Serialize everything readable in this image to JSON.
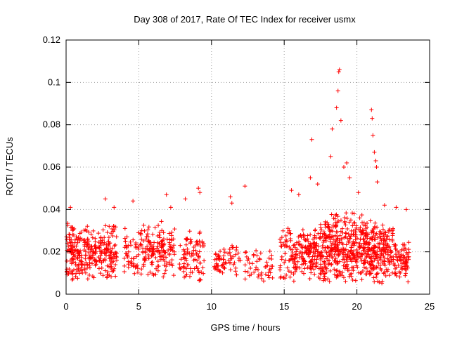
{
  "chart_data": {
    "type": "scatter",
    "title": "Day 308 of 2017, Rate Of TEC Index for receiver usmx",
    "xlabel": "GPS time / hours",
    "ylabel": "ROTI / TECUs",
    "xlim": [
      0,
      25
    ],
    "ylim": [
      0,
      0.12
    ],
    "xticks": [
      0,
      5,
      10,
      15,
      20,
      25
    ],
    "yticks": [
      0,
      0.02,
      0.04,
      0.06,
      0.08,
      0.1,
      0.12
    ],
    "ytick_labels": [
      "0",
      "0.02",
      "0.04",
      "0.06",
      "0.08",
      "0.1",
      "0.12"
    ],
    "grid": true,
    "legend": "none",
    "marker": "+",
    "color": "#ff0000",
    "density_bands": [
      {
        "x_range": [
          0.0,
          3.5
        ],
        "y_min": 0.005,
        "y_max": 0.035,
        "count": 320
      },
      {
        "x_range": [
          4.0,
          5.0
        ],
        "y_min": 0.006,
        "y_max": 0.032,
        "count": 50
      },
      {
        "x_range": [
          5.1,
          7.5
        ],
        "y_min": 0.006,
        "y_max": 0.035,
        "count": 160
      },
      {
        "x_range": [
          7.8,
          9.5
        ],
        "y_min": 0.005,
        "y_max": 0.03,
        "count": 90
      },
      {
        "x_range": [
          10.2,
          12.0
        ],
        "y_min": 0.007,
        "y_max": 0.025,
        "count": 70
      },
      {
        "x_range": [
          12.3,
          14.2
        ],
        "y_min": 0.005,
        "y_max": 0.022,
        "count": 50
      },
      {
        "x_range": [
          14.7,
          17.5
        ],
        "y_min": 0.005,
        "y_max": 0.033,
        "count": 220
      },
      {
        "x_range": [
          17.5,
          20.5
        ],
        "y_min": 0.004,
        "y_max": 0.04,
        "count": 360
      },
      {
        "x_range": [
          20.5,
          22.5
        ],
        "y_min": 0.004,
        "y_max": 0.036,
        "count": 230
      },
      {
        "x_range": [
          22.5,
          23.6
        ],
        "y_min": 0.005,
        "y_max": 0.028,
        "count": 80
      }
    ],
    "outliers": [
      {
        "x": 0.3,
        "y": 0.041
      },
      {
        "x": 2.7,
        "y": 0.045
      },
      {
        "x": 3.3,
        "y": 0.041
      },
      {
        "x": 4.6,
        "y": 0.044
      },
      {
        "x": 6.9,
        "y": 0.047
      },
      {
        "x": 7.2,
        "y": 0.041
      },
      {
        "x": 8.2,
        "y": 0.045
      },
      {
        "x": 9.1,
        "y": 0.05
      },
      {
        "x": 9.2,
        "y": 0.048
      },
      {
        "x": 11.3,
        "y": 0.046
      },
      {
        "x": 11.4,
        "y": 0.043
      },
      {
        "x": 12.3,
        "y": 0.051
      },
      {
        "x": 15.5,
        "y": 0.049
      },
      {
        "x": 16.0,
        "y": 0.047
      },
      {
        "x": 16.8,
        "y": 0.055
      },
      {
        "x": 16.9,
        "y": 0.073
      },
      {
        "x": 17.3,
        "y": 0.052
      },
      {
        "x": 18.2,
        "y": 0.065
      },
      {
        "x": 18.3,
        "y": 0.078
      },
      {
        "x": 18.6,
        "y": 0.088
      },
      {
        "x": 18.7,
        "y": 0.096
      },
      {
        "x": 18.75,
        "y": 0.105
      },
      {
        "x": 18.8,
        "y": 0.106
      },
      {
        "x": 18.9,
        "y": 0.082
      },
      {
        "x": 19.1,
        "y": 0.06
      },
      {
        "x": 19.3,
        "y": 0.062
      },
      {
        "x": 19.5,
        "y": 0.055
      },
      {
        "x": 20.1,
        "y": 0.048
      },
      {
        "x": 21.0,
        "y": 0.087
      },
      {
        "x": 21.05,
        "y": 0.083
      },
      {
        "x": 21.1,
        "y": 0.075
      },
      {
        "x": 21.2,
        "y": 0.067
      },
      {
        "x": 21.3,
        "y": 0.063
      },
      {
        "x": 21.35,
        "y": 0.06
      },
      {
        "x": 21.4,
        "y": 0.053
      },
      {
        "x": 21.9,
        "y": 0.042
      },
      {
        "x": 22.7,
        "y": 0.041
      },
      {
        "x": 23.4,
        "y": 0.04
      }
    ]
  }
}
